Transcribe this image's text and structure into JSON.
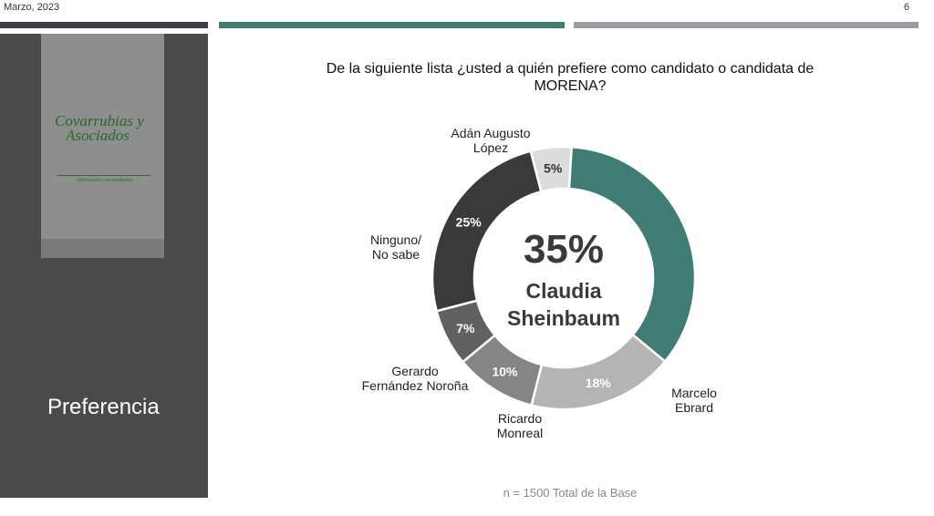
{
  "header": {
    "date": "Marzo, 2023",
    "page_number": "6"
  },
  "sidebar": {
    "logo_line1": "Covarrubias y",
    "logo_line2": "Asociados",
    "logo_tagline": "Información con resultados",
    "section_title": "Preferencia"
  },
  "question": "De la siguiente lista ¿usted a quién prefiere como candidato o candidata de MORENA?",
  "footnote": "n = 1500 Total de la Base",
  "colors": {
    "sheinbaum": "#3f7d74",
    "ebrard": "#b4b4b4",
    "monreal": "#858585",
    "norona": "#616161",
    "ninguno": "#3a3a3a",
    "lopez": "#dcdcdc"
  },
  "chart_data": {
    "type": "pie",
    "style": "donut",
    "center_value": "35%",
    "center_label_lines": [
      "Claudia",
      "Sheinbaum"
    ],
    "slices": [
      {
        "key": "sheinbaum",
        "label_lines": [],
        "value": 35,
        "value_label": ""
      },
      {
        "key": "ebrard",
        "label_lines": [
          "Marcelo",
          "Ebrard"
        ],
        "value": 18,
        "value_label": "18%"
      },
      {
        "key": "monreal",
        "label_lines": [
          "Ricardo",
          "Monreal"
        ],
        "value": 10,
        "value_label": "10%"
      },
      {
        "key": "norona",
        "label_lines": [
          "Gerardo",
          "Fernández Noroña"
        ],
        "value": 7,
        "value_label": "7%"
      },
      {
        "key": "ninguno",
        "label_lines": [
          "Ninguno/",
          "No sabe"
        ],
        "value": 25,
        "value_label": "25%"
      },
      {
        "key": "lopez",
        "label_lines": [
          "Adán Augusto",
          "López"
        ],
        "value": 5,
        "value_label": "5%"
      }
    ]
  }
}
